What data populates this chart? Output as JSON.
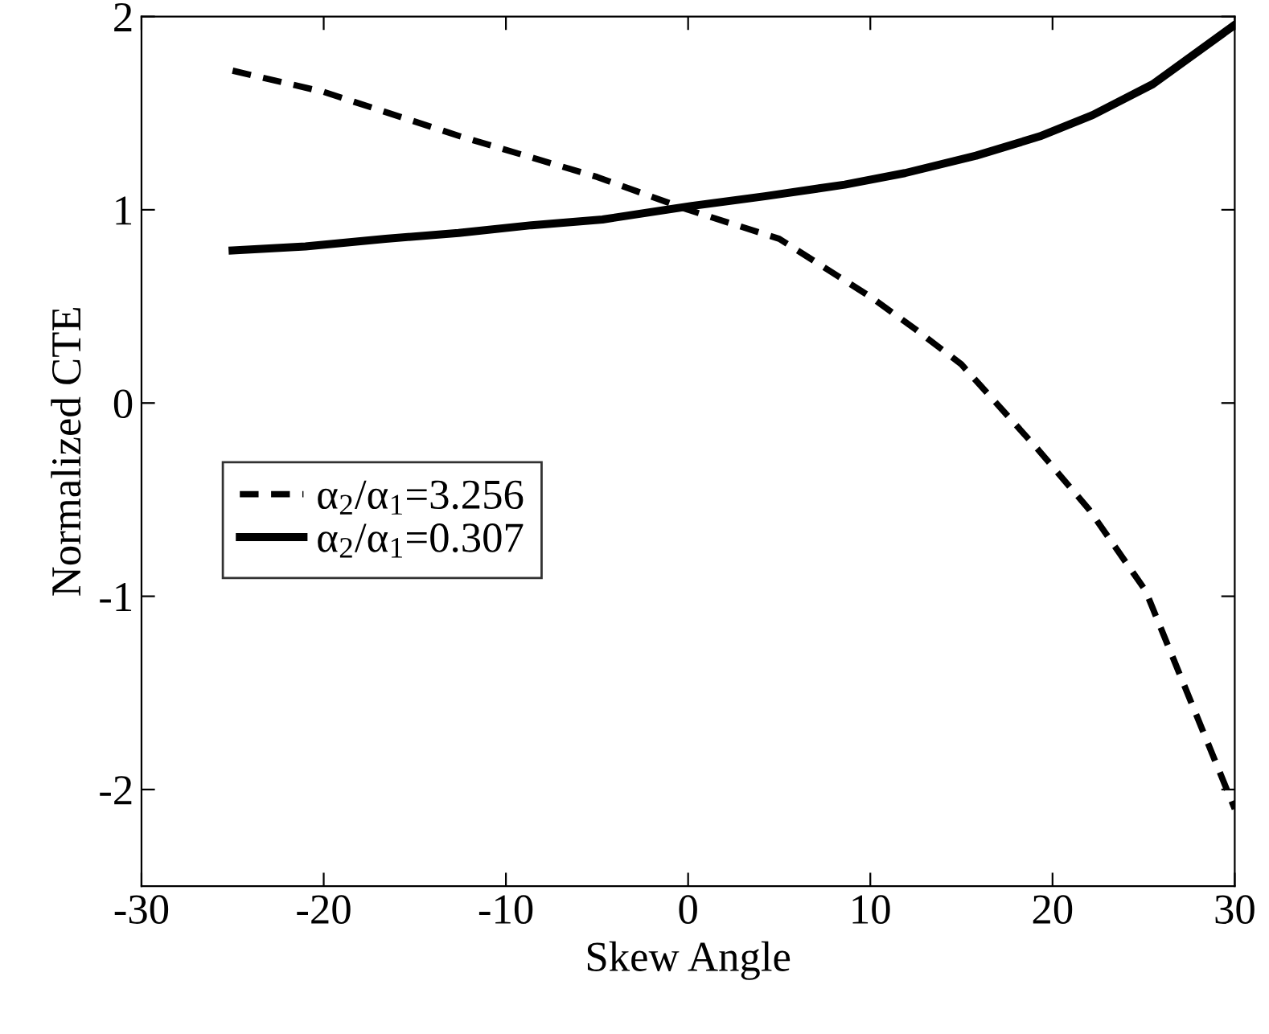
{
  "chart_data": {
    "type": "line",
    "xlabel": "Skew Angle",
    "ylabel": "Normalized CTE",
    "xlim": [
      -30,
      30
    ],
    "ylim": [
      -2.5,
      2
    ],
    "xticks": [
      -30,
      -20,
      -10,
      0,
      10,
      20,
      30
    ],
    "yticks": [
      -2,
      -1,
      0,
      1,
      2
    ],
    "grid": false,
    "legend": "bottom left",
    "series": [
      {
        "name": "α$_{2}$/α$_{1}$=3.256",
        "color": "#000000",
        "line_style": "dashed",
        "x": [
          -25,
          -20,
          -12.5,
          -5,
          0,
          5,
          10,
          12.5,
          15,
          19.2,
          22,
          25.1,
          30
        ],
        "values": [
          1.72,
          1.61,
          1.38,
          1.17,
          1.0,
          0.85,
          0.55,
          0.38,
          0.2,
          -0.24,
          -0.55,
          -0.97,
          -2.1
        ]
      },
      {
        "name": "α$_{2}$/α$_{1}$=0.307",
        "color": "#000000",
        "line_style": "solid",
        "x": [
          -25,
          -21,
          -16.6,
          -12.6,
          -8.6,
          -4.7,
          0.2,
          4.2,
          8.6,
          11.9,
          15.8,
          19.3,
          22.2,
          25.5,
          29.9
        ],
        "values": [
          0.79,
          0.81,
          0.85,
          0.88,
          0.92,
          0.95,
          1.02,
          1.07,
          1.13,
          1.19,
          1.28,
          1.38,
          1.49,
          1.65,
          1.95
        ]
      }
    ]
  }
}
